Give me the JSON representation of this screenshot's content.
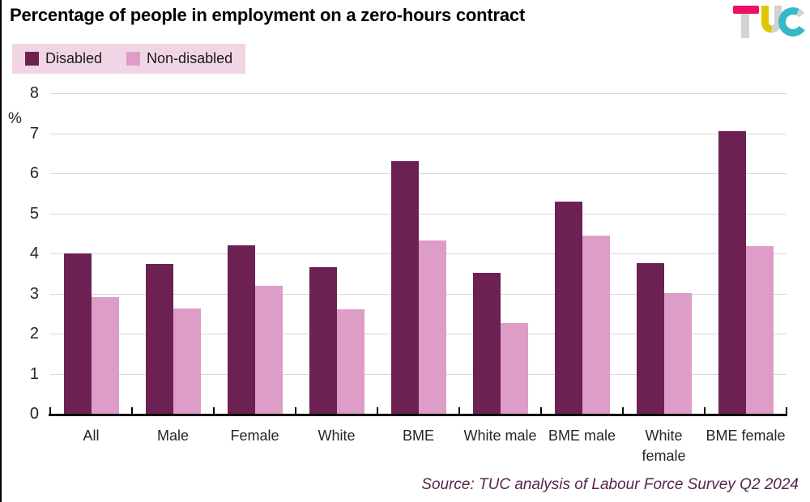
{
  "title": "Percentage of people in employment on a zero-hours contract",
  "logo": {
    "text": "TUC",
    "colors": {
      "t_bar": "#ec1164",
      "letter_gray": "#d2d2d3",
      "u_yellow": "#e0c400",
      "c_teal": "#35b9c4"
    }
  },
  "legend": {
    "background": "#f2d5e5",
    "items": [
      {
        "label": "Disabled",
        "color": "#6d2152"
      },
      {
        "label": "Non-disabled",
        "color": "#dd9dc6"
      }
    ]
  },
  "source": "Source: TUC analysis of Labour Force Survey Q2 2024",
  "colors": {
    "source_text": "#55254a",
    "gridline": "#d9d9d9"
  },
  "chart_data": {
    "type": "bar",
    "title": "Percentage of people in employment on a zero-hours contract",
    "categories": [
      "All",
      "Male",
      "Female",
      "White",
      "BME",
      "White male",
      "BME male",
      "White female",
      "BME female"
    ],
    "series": [
      {
        "name": "Disabled",
        "color": "#6d2152",
        "values": [
          4.0,
          3.73,
          4.2,
          3.66,
          6.3,
          3.52,
          5.3,
          3.76,
          7.05
        ]
      },
      {
        "name": "Non-disabled",
        "color": "#dd9dc6",
        "values": [
          2.9,
          2.62,
          3.2,
          2.6,
          4.32,
          2.26,
          4.44,
          3.01,
          4.19
        ]
      }
    ],
    "xlabel": "",
    "ylabel": "%",
    "ylim": [
      0,
      8
    ],
    "yticks": [
      0,
      1,
      2,
      3,
      4,
      5,
      6,
      7,
      8
    ],
    "grid": true,
    "legend_position": "top-left",
    "xtick_lines": [
      [
        "All"
      ],
      [
        "Male"
      ],
      [
        "Female"
      ],
      [
        "White"
      ],
      [
        "BME"
      ],
      [
        "White male"
      ],
      [
        "BME male"
      ],
      [
        "White",
        "female"
      ],
      [
        "BME female"
      ]
    ]
  }
}
